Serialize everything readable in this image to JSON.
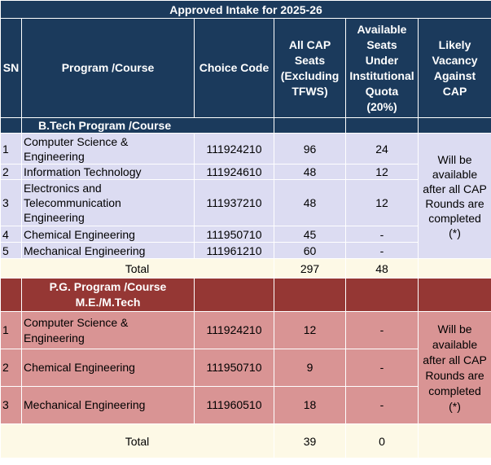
{
  "title": "Approved Intake for 2025-26",
  "headers": {
    "sn": "SN",
    "program": "Program /Course",
    "choice_code": "Choice Code",
    "cap_l1": "All CAP",
    "cap_l2": "Seats",
    "cap_l3": "(Excluding",
    "cap_l4": "TFWS)",
    "inst_l1": "Available",
    "inst_l2": "Seats",
    "inst_l3": "Under",
    "inst_l4": "Institutional",
    "inst_l5": "Quota",
    "inst_l6": "(20%)",
    "vac_l1": "Likely",
    "vac_l2": "Vacancy",
    "vac_l3": "Against",
    "vac_l4": "CAP"
  },
  "ug": {
    "section_label": "B.Tech Program /Course",
    "rows": [
      {
        "sn": "1",
        "program_l1": "Computer Science &",
        "program_l2": "Engineering",
        "program_l3": "",
        "code": "111924210",
        "cap": "96",
        "inst": "24"
      },
      {
        "sn": "2",
        "program_l1": "Information Technology",
        "program_l2": "",
        "program_l3": "",
        "code": "111924610",
        "cap": "48",
        "inst": "12"
      },
      {
        "sn": "3",
        "program_l1": "Electronics and",
        "program_l2": "Telecommunication",
        "program_l3": "Engineering",
        "code": "111937210",
        "cap": "48",
        "inst": "12"
      },
      {
        "sn": "4",
        "program_l1": "Chemical Engineering",
        "program_l2": "",
        "program_l3": "",
        "code": "111950710",
        "cap": "45",
        "inst": "-"
      },
      {
        "sn": "5",
        "program_l1": "Mechanical Engineering",
        "program_l2": "",
        "program_l3": "",
        "code": "111961210",
        "cap": "60",
        "inst": "-"
      }
    ],
    "vacancy_l1": "Will be",
    "vacancy_l2": "available",
    "vacancy_l3": "after all CAP",
    "vacancy_l4": "Rounds are",
    "vacancy_l5": "completed",
    "vacancy_l6": "(*)",
    "total_label": "Total",
    "total_cap": "297",
    "total_inst": "48"
  },
  "pg": {
    "section_l1": "P.G. Program /Course",
    "section_l2": "M.E./M.Tech",
    "rows": [
      {
        "sn": "1",
        "program_l1": "Computer Science &",
        "program_l2": "Engineering",
        "code": "111924210",
        "cap": "12",
        "inst": "-"
      },
      {
        "sn": "2",
        "program_l1": "Chemical Engineering",
        "program_l2": "",
        "code": "111950710",
        "cap": "9",
        "inst": "-"
      },
      {
        "sn": "3",
        "program_l1": "Mechanical Engineering",
        "program_l2": "",
        "code": "111960510",
        "cap": "18",
        "inst": "-"
      }
    ],
    "vacancy_l1": "Will be",
    "vacancy_l2": "available",
    "vacancy_l3": "after all CAP",
    "vacancy_l4": "Rounds are",
    "vacancy_l5": "completed",
    "vacancy_l6": "(*)",
    "total_label": "Total",
    "total_cap": "39",
    "total_inst": "0"
  },
  "colors": {
    "header_navy": "#1b3a5c",
    "ug_row": "#dcdcf2",
    "pg_section": "#953734",
    "pg_row": "#d99494",
    "total_row": "#fdf9e6"
  }
}
